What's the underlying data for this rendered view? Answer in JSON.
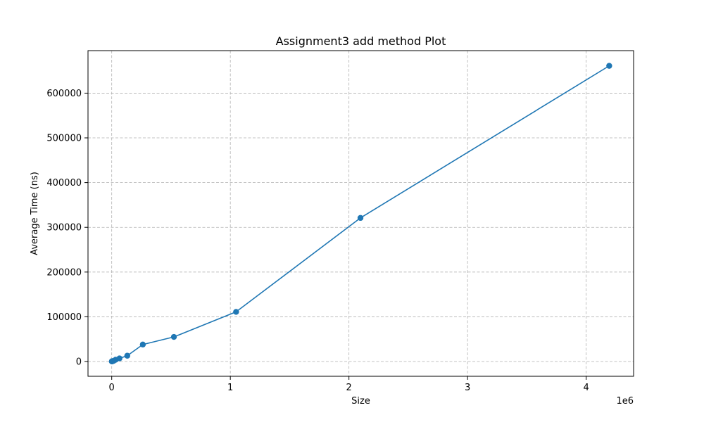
{
  "chart_data": {
    "type": "line",
    "title": "Assignment3 add method Plot",
    "xlabel": "Size",
    "ylabel": "Average Time (ns)",
    "x_offset_text": "1e6",
    "xlim": [
      -200000,
      4400000
    ],
    "ylim": [
      -33000,
      695000
    ],
    "x_ticks": [
      0,
      1000000,
      2000000,
      3000000,
      4000000
    ],
    "x_tick_labels": [
      "0",
      "1",
      "2",
      "3",
      "4"
    ],
    "y_ticks": [
      0,
      100000,
      200000,
      300000,
      400000,
      500000,
      600000
    ],
    "y_tick_labels": [
      "0",
      "100000",
      "200000",
      "300000",
      "400000",
      "500000",
      "600000"
    ],
    "grid": true,
    "grid_style": "dashed",
    "series": [
      {
        "color": "#1f77b4",
        "marker": "circle",
        "x": [
          1024,
          2048,
          4096,
          8192,
          16384,
          32768,
          65536,
          131072,
          262144,
          524288,
          1048576,
          2097152,
          4194304
        ],
        "y": [
          300,
          400,
          600,
          900,
          1500,
          4000,
          7000,
          13000,
          38000,
          55000,
          111000,
          321000,
          661000
        ]
      }
    ]
  }
}
